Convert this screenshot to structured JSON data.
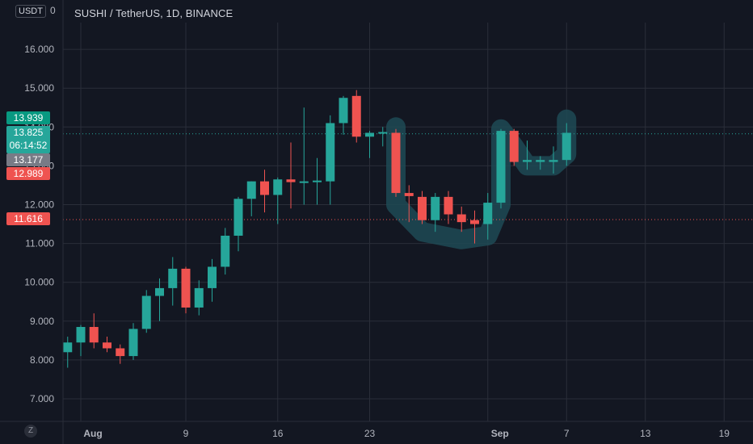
{
  "header": {
    "currency": "USDT",
    "top_axis_fragment": "0",
    "symbol_title": "SUSHI / TetherUS, 1D, BINANCE"
  },
  "controls": {
    "zoom_reset": "Z"
  },
  "colors": {
    "background": "#131722",
    "grid": "#2a2e39",
    "up": "#26a69a",
    "down": "#ef5350",
    "axis_text": "#b2b5be",
    "highlight": "#1e4a55"
  },
  "price_tags": {
    "high_label": "13.939",
    "last_price": "13.825",
    "countdown": "06:14:52",
    "prev_close": "13.177",
    "open_label": "12.989",
    "marker_line": "11.616"
  },
  "chart_data": {
    "type": "candlestick",
    "title": "SUSHI / TetherUS, 1D, BINANCE",
    "currency": "USDT",
    "y_ticks": [
      "7.000",
      "8.000",
      "9.000",
      "10.000",
      "11.000",
      "12.000",
      "13.000",
      "14.000",
      "15.000",
      "16.000"
    ],
    "x_ticks": [
      "Aug",
      "9",
      "16",
      "23",
      "Sep",
      "7",
      "13",
      "19"
    ],
    "ylim": [
      6.3,
      17.1
    ],
    "grid": true,
    "horizontal_lines": [
      {
        "value": 13.825,
        "color": "#26a69a",
        "style": "dotted"
      },
      {
        "value": 11.616,
        "color": "#ef5350",
        "style": "dotted"
      }
    ],
    "candles": [
      {
        "date": "2021-07-31",
        "open": 8.2,
        "high": 8.6,
        "low": 7.8,
        "close": 8.45
      },
      {
        "date": "2021-08-01",
        "open": 8.45,
        "high": 8.9,
        "low": 8.1,
        "close": 8.85
      },
      {
        "date": "2021-08-02",
        "open": 8.85,
        "high": 9.2,
        "low": 8.3,
        "close": 8.45
      },
      {
        "date": "2021-08-03",
        "open": 8.45,
        "high": 8.6,
        "low": 8.2,
        "close": 8.3
      },
      {
        "date": "2021-08-04",
        "open": 8.3,
        "high": 8.4,
        "low": 7.9,
        "close": 8.1
      },
      {
        "date": "2021-08-05",
        "open": 8.1,
        "high": 8.95,
        "low": 8.0,
        "close": 8.8
      },
      {
        "date": "2021-08-06",
        "open": 8.8,
        "high": 9.8,
        "low": 8.7,
        "close": 9.65
      },
      {
        "date": "2021-08-07",
        "open": 9.65,
        "high": 10.1,
        "low": 9.0,
        "close": 9.85
      },
      {
        "date": "2021-08-08",
        "open": 9.85,
        "high": 10.65,
        "low": 9.4,
        "close": 10.35
      },
      {
        "date": "2021-08-09",
        "open": 10.35,
        "high": 10.4,
        "low": 9.2,
        "close": 9.35
      },
      {
        "date": "2021-08-10",
        "open": 9.35,
        "high": 10.05,
        "low": 9.15,
        "close": 9.85
      },
      {
        "date": "2021-08-11",
        "open": 9.85,
        "high": 10.6,
        "low": 9.5,
        "close": 10.4
      },
      {
        "date": "2021-08-12",
        "open": 10.4,
        "high": 11.4,
        "low": 10.2,
        "close": 11.2
      },
      {
        "date": "2021-08-13",
        "open": 11.2,
        "high": 12.2,
        "low": 10.8,
        "close": 12.15
      },
      {
        "date": "2021-08-14",
        "open": 12.15,
        "high": 12.6,
        "low": 11.7,
        "close": 12.6
      },
      {
        "date": "2021-08-15",
        "open": 12.6,
        "high": 12.9,
        "low": 11.8,
        "close": 12.25
      },
      {
        "date": "2021-08-16",
        "open": 12.25,
        "high": 12.7,
        "low": 11.5,
        "close": 12.65
      },
      {
        "date": "2021-08-17",
        "open": 12.65,
        "high": 13.6,
        "low": 11.9,
        "close": 12.58
      },
      {
        "date": "2021-08-18",
        "open": 12.58,
        "high": 14.5,
        "low": 12.0,
        "close": 12.6
      },
      {
        "date": "2021-08-19",
        "open": 12.58,
        "high": 13.2,
        "low": 12.0,
        "close": 12.62
      },
      {
        "date": "2021-08-20",
        "open": 12.6,
        "high": 14.3,
        "low": 12.0,
        "close": 14.1
      },
      {
        "date": "2021-08-21",
        "open": 14.1,
        "high": 14.8,
        "low": 13.8,
        "close": 14.75
      },
      {
        "date": "2021-08-22",
        "open": 14.8,
        "high": 14.95,
        "low": 13.6,
        "close": 13.75
      },
      {
        "date": "2021-08-23",
        "open": 13.75,
        "high": 13.9,
        "low": 13.2,
        "close": 13.85
      },
      {
        "date": "2021-08-24",
        "open": 13.85,
        "high": 14.0,
        "low": 13.5,
        "close": 13.87
      },
      {
        "date": "2021-08-25",
        "open": 13.85,
        "high": 13.95,
        "low": 12.2,
        "close": 12.3
      },
      {
        "date": "2021-08-26",
        "open": 12.3,
        "high": 12.5,
        "low": 11.55,
        "close": 12.22
      },
      {
        "date": "2021-08-27",
        "open": 12.2,
        "high": 12.35,
        "low": 11.5,
        "close": 11.6
      },
      {
        "date": "2021-08-28",
        "open": 11.6,
        "high": 12.3,
        "low": 11.3,
        "close": 12.2
      },
      {
        "date": "2021-08-29",
        "open": 12.2,
        "high": 12.35,
        "low": 11.5,
        "close": 11.75
      },
      {
        "date": "2021-08-30",
        "open": 11.75,
        "high": 11.95,
        "low": 11.3,
        "close": 11.55
      },
      {
        "date": "2021-08-31",
        "open": 11.6,
        "high": 11.85,
        "low": 11.0,
        "close": 11.5
      },
      {
        "date": "2021-09-01",
        "open": 11.5,
        "high": 12.3,
        "low": 11.1,
        "close": 12.05
      },
      {
        "date": "2021-09-02",
        "open": 12.05,
        "high": 13.95,
        "low": 11.9,
        "close": 13.9
      },
      {
        "date": "2021-09-03",
        "open": 13.9,
        "high": 13.95,
        "low": 13.0,
        "close": 13.1
      },
      {
        "date": "2021-09-04",
        "open": 13.1,
        "high": 13.65,
        "low": 12.9,
        "close": 13.15
      },
      {
        "date": "2021-09-05",
        "open": 13.1,
        "high": 13.25,
        "low": 12.9,
        "close": 13.15
      },
      {
        "date": "2021-09-06",
        "open": 13.1,
        "high": 13.5,
        "low": 12.8,
        "close": 13.15
      },
      {
        "date": "2021-09-07",
        "open": 13.15,
        "high": 14.1,
        "low": 13.0,
        "close": 13.85
      }
    ]
  }
}
